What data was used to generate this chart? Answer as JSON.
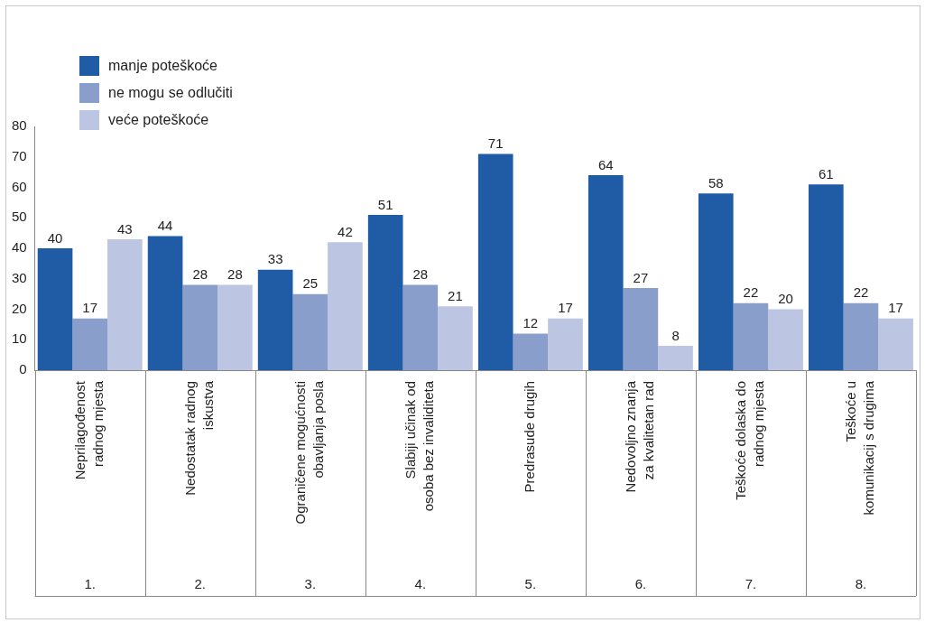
{
  "chart_data": {
    "type": "bar",
    "categories": [
      "Neprilagođenost\nradnog mjesta",
      "Nedostatak radnog\niskustva",
      "Ograničene mogućnosti\nobavljanja posla",
      "Slabiji učinak od\nosoba bez invaliditeta",
      "Predrasude drugih",
      "Nedovoljno znanja\nza kvalitetan rad",
      "Teškoće dolaska do\nradnog mjesta",
      "Teškoće u\nkomunikacij s drugima"
    ],
    "series": [
      {
        "name": "manje poteškoće",
        "color": "#1f5ca5",
        "values": [
          40,
          44,
          33,
          51,
          71,
          64,
          58,
          61
        ]
      },
      {
        "name": "ne mogu se odlučiti",
        "color": "#8a9ecb",
        "values": [
          17,
          28,
          25,
          28,
          12,
          27,
          22,
          22
        ]
      },
      {
        "name": "veće poteškoće",
        "color": "#bcc6e3",
        "values": [
          43,
          28,
          42,
          21,
          17,
          8,
          20,
          17
        ]
      }
    ],
    "annotations": [
      "1.",
      "2.",
      "3.",
      "4.",
      "5.",
      "6.",
      "7.",
      "8."
    ],
    "ylim": [
      0,
      80
    ],
    "yticks": [
      0,
      10,
      20,
      30,
      40,
      50,
      60,
      70,
      80
    ],
    "grid": false,
    "legend": "top left",
    "data_labels": true
  }
}
